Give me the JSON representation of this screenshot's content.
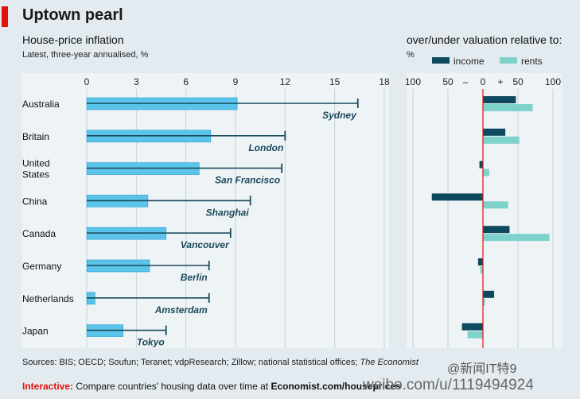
{
  "header": {
    "title": "Uptown pearl"
  },
  "left_panel": {
    "title": "House-price inflation",
    "subtitle": "Latest, three-year annualised, %"
  },
  "right_panel": {
    "title": "over/under valuation relative to:",
    "unit": "%"
  },
  "footer": {
    "source_prefix": "Sources: BIS; OECD; Soufun; Teranet; vdpResearch; Zillow; national statistical offices; ",
    "source_italic": "The Economist",
    "interactive_label": "Interactive:",
    "interactive_text": " Compare countries' housing data over time at ",
    "interactive_url": "Economist.com/houseprices"
  },
  "watermark": {
    "line1": "@新闻IT特9",
    "line2": "weibo.com/u/1119494924"
  },
  "colors": {
    "background": "#e3ebf0",
    "plot_bg": "#eef3f6",
    "bar_light": "#5bc4ea",
    "bar_light_edge": "#2c9fd0",
    "city_line": "#1b4a5c",
    "city_label": "#1b4a5c",
    "income": "#0d4a5f",
    "rents": "#7fd1cc",
    "zero_line": "#e3120b",
    "brand_red": "#e3120b"
  },
  "chart_data": [
    {
      "type": "bar",
      "orientation": "horizontal",
      "categories": [
        "Australia",
        "Britain",
        "United States",
        "China",
        "Canada",
        "Germany",
        "Netherlands",
        "Japan"
      ],
      "category_lines": [
        [
          "Australia"
        ],
        [
          "Britain"
        ],
        [
          "United",
          "States"
        ],
        [
          "China"
        ],
        [
          "Canada"
        ],
        [
          "Germany"
        ],
        [
          "Netherlands"
        ],
        [
          "Japan"
        ]
      ],
      "series": [
        {
          "values": [
            9.1,
            7.5,
            6.8,
            3.7,
            4.8,
            3.8,
            0.5,
            2.2
          ]
        },
        {
          "values": [
            16.4,
            12.0,
            11.8,
            9.9,
            8.7,
            7.4,
            7.4,
            4.8
          ]
        }
      ],
      "city_labels": [
        "Sydney",
        "London",
        "San Francisco",
        "Shanghai",
        "Vancouver",
        "Berlin",
        "Amsterdam",
        "Tokyo"
      ],
      "xlim": [
        0,
        18
      ],
      "xticks": [
        0,
        3,
        6,
        9,
        12,
        15,
        18
      ],
      "grid": true
    },
    {
      "type": "bar",
      "orientation": "horizontal",
      "categories": [
        "Australia",
        "Britain",
        "United States",
        "China",
        "Canada",
        "Germany",
        "Netherlands",
        "Japan"
      ],
      "series": [
        {
          "name": "income",
          "values": [
            47,
            32,
            -5,
            -73,
            38,
            -7,
            16,
            -30
          ]
        },
        {
          "name": "rents",
          "values": [
            71,
            52,
            9,
            36,
            95,
            -4,
            3,
            -22
          ]
        }
      ],
      "xlim": [
        -100,
        100
      ],
      "xticks": [
        "100",
        "50",
        "–",
        "0",
        "+",
        "50",
        "100"
      ],
      "xtick_values": [
        -100,
        -50,
        -25,
        0,
        25,
        50,
        100
      ],
      "grid": true
    }
  ]
}
